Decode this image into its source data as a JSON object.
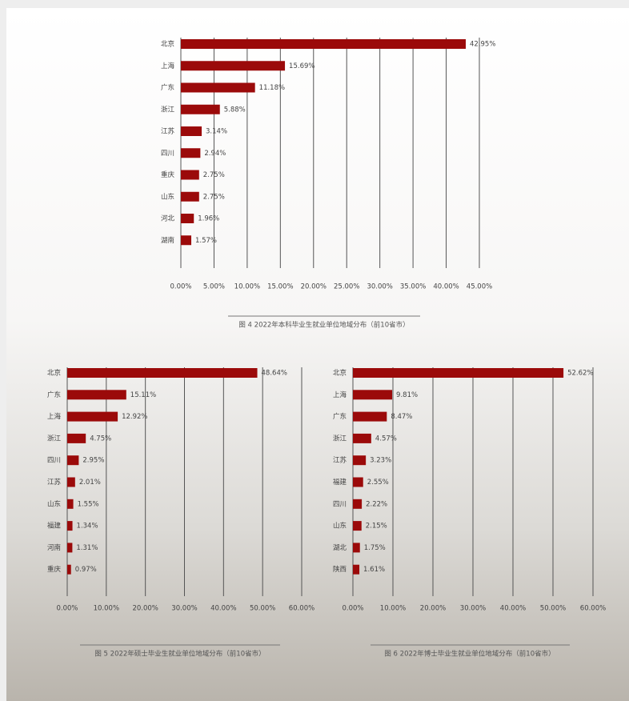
{
  "chart_data": [
    {
      "type": "bar",
      "orientation": "horizontal",
      "title": "图 4 2022年本科毕业生就业单位地域分布（前10省市）",
      "color": "#9b0a0a",
      "grid": true,
      "categories": [
        "北京",
        "上海",
        "广东",
        "浙江",
        "江苏",
        "四川",
        "重庆",
        "山东",
        "河北",
        "湖南"
      ],
      "values": [
        42.95,
        15.69,
        11.18,
        5.88,
        3.14,
        2.94,
        2.75,
        2.75,
        1.96,
        1.57
      ],
      "value_labels": [
        "42.95%",
        "15.69%",
        "11.18%",
        "5.88%",
        "3.14%",
        "2.94%",
        "2.75%",
        "2.75%",
        "1.96%",
        "1.57%"
      ],
      "xlim": [
        0,
        45
      ],
      "xticks": [
        {
          "value": 0,
          "label": "0.00%"
        },
        {
          "value": 5,
          "label": "5.00%"
        },
        {
          "value": 10,
          "label": "10.00%"
        },
        {
          "value": 15,
          "label": "15.00%"
        },
        {
          "value": 20,
          "label": "20.00%"
        },
        {
          "value": 25,
          "label": "25.00%"
        },
        {
          "value": 30,
          "label": "30.00%"
        },
        {
          "value": 35,
          "label": "35.00%"
        },
        {
          "value": 40,
          "label": "40.00%"
        },
        {
          "value": 45,
          "label": "45.00%"
        }
      ]
    },
    {
      "type": "bar",
      "orientation": "horizontal",
      "title": "图 5 2022年硕士毕业生就业单位地域分布（前10省市）",
      "color": "#9b0a0a",
      "grid": true,
      "categories": [
        "北京",
        "广东",
        "上海",
        "浙江",
        "四川",
        "江苏",
        "山东",
        "福建",
        "河南",
        "重庆"
      ],
      "values": [
        48.64,
        15.11,
        12.92,
        4.75,
        2.95,
        2.01,
        1.55,
        1.34,
        1.31,
        0.97
      ],
      "value_labels": [
        "48.64%",
        "15.11%",
        "12.92%",
        "4.75%",
        "2.95%",
        "2.01%",
        "1.55%",
        "1.34%",
        "1.31%",
        "0.97%"
      ],
      "xlim": [
        0,
        60
      ],
      "xticks": [
        {
          "value": 0,
          "label": "0.00%"
        },
        {
          "value": 10,
          "label": "10.00%"
        },
        {
          "value": 20,
          "label": "20.00%"
        },
        {
          "value": 30,
          "label": "30.00%"
        },
        {
          "value": 40,
          "label": "40.00%"
        },
        {
          "value": 50,
          "label": "50.00%"
        },
        {
          "value": 60,
          "label": "60.00%"
        }
      ]
    },
    {
      "type": "bar",
      "orientation": "horizontal",
      "title": "图 6 2022年博士毕业生就业单位地域分布（前10省市）",
      "color": "#9b0a0a",
      "grid": true,
      "categories": [
        "北京",
        "上海",
        "广东",
        "浙江",
        "江苏",
        "福建",
        "四川",
        "山东",
        "湖北",
        "陕西"
      ],
      "values": [
        52.62,
        9.81,
        8.47,
        4.57,
        3.23,
        2.55,
        2.22,
        2.15,
        1.75,
        1.61
      ],
      "value_labels": [
        "52.62%",
        "9.81%",
        "8.47%",
        "4.57%",
        "3.23%",
        "2.55%",
        "2.22%",
        "2.15%",
        "1.75%",
        "1.61%"
      ],
      "xlim": [
        0,
        60
      ],
      "xticks": [
        {
          "value": 0,
          "label": "0.00%"
        },
        {
          "value": 10,
          "label": "10.00%"
        },
        {
          "value": 20,
          "label": "20.00%"
        },
        {
          "value": 30,
          "label": "30.00%"
        },
        {
          "value": 40,
          "label": "40.00%"
        },
        {
          "value": 50,
          "label": "50.00%"
        },
        {
          "value": 60,
          "label": "60.00%"
        }
      ]
    }
  ]
}
